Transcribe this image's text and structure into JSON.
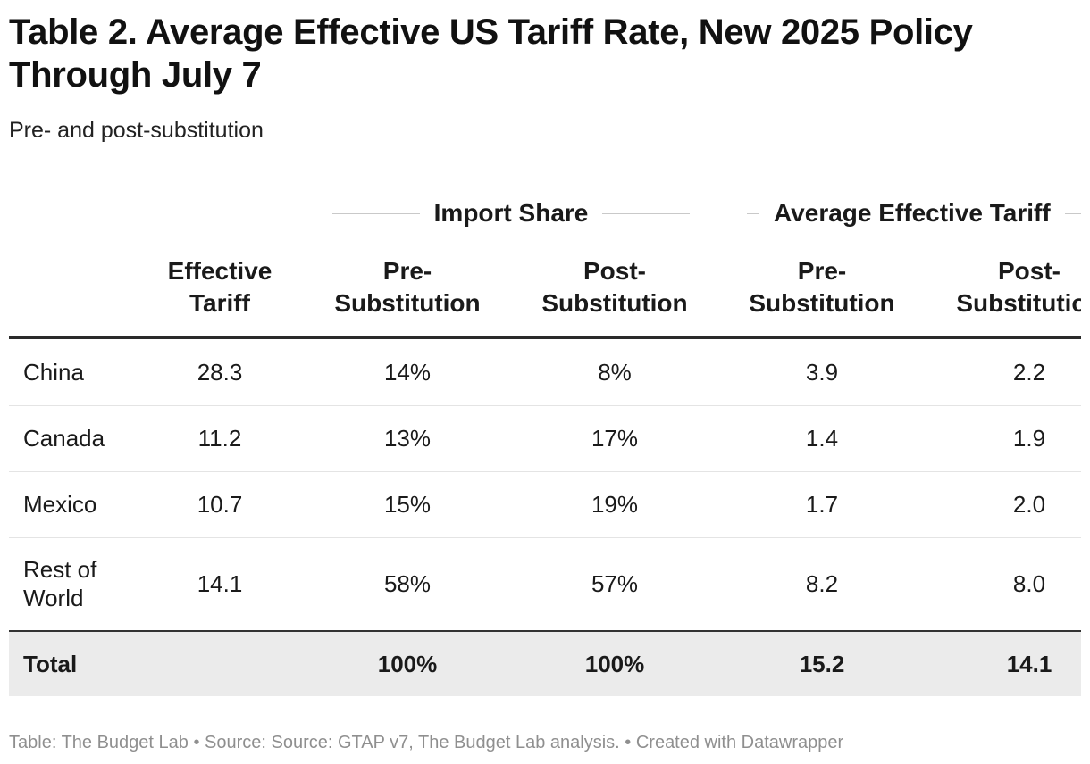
{
  "title": "Table 2. Average Effective US Tariff Rate, New 2025 Policy Through July 7",
  "subtitle": "Pre- and post-substitution",
  "chart_data": {
    "type": "table",
    "group_headers": [
      "Import Share",
      "Average Effective Tariff"
    ],
    "columns": [
      "",
      "Effective\nTariff",
      "Pre-\nSubstitution",
      "Post-\nSubstitution",
      "Pre-\nSubstitution",
      "Post-\nSubstitution"
    ],
    "rows": [
      [
        "China",
        "28.3",
        "14%",
        "8%",
        "3.9",
        "2.2"
      ],
      [
        "Canada",
        "11.2",
        "13%",
        "17%",
        "1.4",
        "1.9"
      ],
      [
        "Mexico",
        "10.7",
        "15%",
        "19%",
        "1.7",
        "2.0"
      ],
      [
        "Rest of\nWorld",
        "14.1",
        "58%",
        "57%",
        "8.2",
        "8.0"
      ]
    ],
    "total": [
      "Total",
      "",
      "100%",
      "100%",
      "15.2",
      "14.1"
    ]
  },
  "footer": "Table: The Budget Lab • Source: Source: GTAP v7, The Budget Lab analysis. • Created with Datawrapper",
  "colors": {
    "text": "#1a1a1a",
    "header_rule": "#2a2a2a",
    "row_divider": "#e4e4e4",
    "total_background": "#ebebeb",
    "footer_text": "#8f8f8f"
  }
}
